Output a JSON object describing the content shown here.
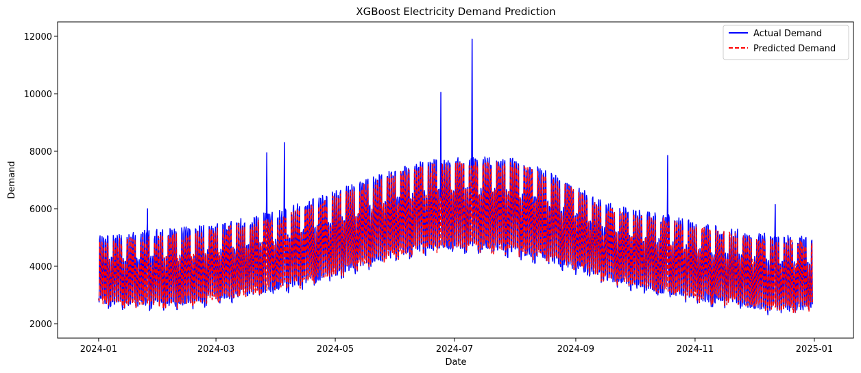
{
  "chart_data": {
    "type": "line",
    "title": "XGBoost Electricity Demand Prediction",
    "xlabel": "Date",
    "ylabel": "Demand",
    "x_range": [
      "2023-12-11",
      "2025-01-21"
    ],
    "ylim": [
      1500,
      12500
    ],
    "x_ticks": [
      "2024-01-01",
      "2024-03-01",
      "2024-05-01",
      "2024-07-01",
      "2024-09-01",
      "2024-11-01",
      "2025-01-01"
    ],
    "x_tick_labels": [
      "2024-01",
      "2024-03",
      "2024-05",
      "2024-07",
      "2024-09",
      "2024-11",
      "2025-01"
    ],
    "y_ticks": [
      2000,
      4000,
      6000,
      8000,
      10000,
      12000
    ],
    "y_tick_labels": [
      "2000",
      "4000",
      "6000",
      "8000",
      "10000",
      "12000"
    ],
    "grid": false,
    "legend_position": "top-right",
    "series": [
      {
        "name": "Actual Demand",
        "color": "#0000ff",
        "style": "solid",
        "x": [
          "2024-01-01",
          "2024-01-15",
          "2024-02-01",
          "2024-02-15",
          "2024-03-01",
          "2024-03-15",
          "2024-04-01",
          "2024-04-15",
          "2024-05-01",
          "2024-05-15",
          "2024-06-01",
          "2024-06-15",
          "2024-07-01",
          "2024-07-15",
          "2024-08-01",
          "2024-08-15",
          "2024-09-01",
          "2024-09-15",
          "2024-10-01",
          "2024-10-15",
          "2024-11-01",
          "2024-11-15",
          "2024-12-01",
          "2024-12-15",
          "2024-12-31"
        ],
        "daily_low": [
          2400,
          2300,
          2250,
          2300,
          2450,
          2600,
          2800,
          3000,
          3300,
          3600,
          3900,
          4100,
          4200,
          4150,
          4000,
          3800,
          3500,
          3200,
          2900,
          2700,
          2500,
          2350,
          2200,
          2100,
          2200
        ],
        "daily_high": [
          5300,
          5500,
          5600,
          5700,
          5800,
          6000,
          6300,
          6600,
          7000,
          7400,
          7800,
          8100,
          8200,
          8300,
          8200,
          7800,
          7200,
          6600,
          6300,
          6200,
          5900,
          5700,
          5500,
          5400,
          5300
        ],
        "spikes": [
          {
            "x": "2024-01-26",
            "y": 6000
          },
          {
            "x": "2024-03-27",
            "y": 7950
          },
          {
            "x": "2024-04-05",
            "y": 8300
          },
          {
            "x": "2024-06-24",
            "y": 10050
          },
          {
            "x": "2024-07-10",
            "y": 11900
          },
          {
            "x": "2024-10-18",
            "y": 7850
          },
          {
            "x": "2024-12-12",
            "y": 6150
          }
        ]
      },
      {
        "name": "Predicted Demand",
        "color": "#ff0000",
        "style": "dashed",
        "x": [
          "2024-01-01",
          "2024-01-15",
          "2024-02-01",
          "2024-02-15",
          "2024-03-01",
          "2024-03-15",
          "2024-04-01",
          "2024-04-15",
          "2024-05-01",
          "2024-05-15",
          "2024-06-01",
          "2024-06-15",
          "2024-07-01",
          "2024-07-15",
          "2024-08-01",
          "2024-08-15",
          "2024-09-01",
          "2024-09-15",
          "2024-10-01",
          "2024-10-15",
          "2024-11-01",
          "2024-11-15",
          "2024-12-01",
          "2024-12-15",
          "2024-12-31"
        ],
        "daily_low": [
          2500,
          2400,
          2350,
          2400,
          2550,
          2700,
          2900,
          3100,
          3400,
          3700,
          4000,
          4200,
          4300,
          4250,
          4100,
          3900,
          3600,
          3300,
          3000,
          2800,
          2600,
          2450,
          2300,
          2200,
          2300
        ],
        "daily_high": [
          5100,
          5250,
          5350,
          5450,
          5600,
          5800,
          6000,
          6400,
          6800,
          7200,
          7600,
          7900,
          8000,
          8050,
          8000,
          7600,
          7000,
          6400,
          6100,
          6000,
          5700,
          5500,
          5300,
          5200,
          5100
        ]
      }
    ]
  }
}
